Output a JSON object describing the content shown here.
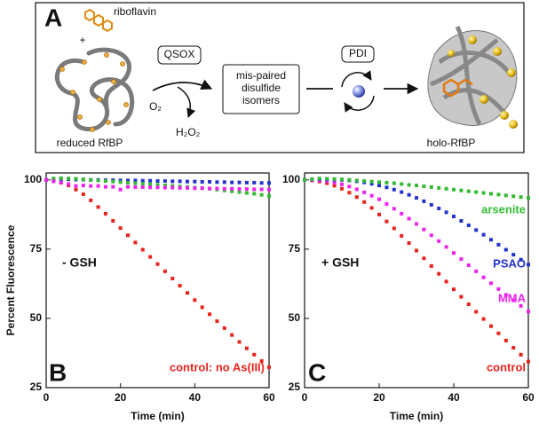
{
  "diagram": {
    "panel": "A",
    "riboflavin": "riboflavin",
    "plus": "+",
    "qsox": "QSOX",
    "o2": "O₂",
    "h2o2": "H₂O₂",
    "isomers": [
      "mis-paired",
      "disulfide",
      "isomers"
    ],
    "pdi": "PDI",
    "reduced": "reduced RfBP",
    "holo": "holo-RfBP"
  },
  "chart_data": [
    {
      "type": "scatter",
      "panel": "B",
      "annotation": "- GSH",
      "y_label": "Percent Fluorescence",
      "x_label": "Time (min)",
      "xlim": [
        0,
        60
      ],
      "xticks": [
        0,
        20,
        40,
        60
      ],
      "ylim": [
        25,
        102.5
      ],
      "yticks": [
        25,
        50,
        75,
        100
      ],
      "x": [
        0,
        2,
        4,
        6,
        8,
        10,
        12,
        14,
        16,
        18,
        20,
        22,
        24,
        26,
        28,
        30,
        32,
        34,
        36,
        38,
        40,
        42,
        44,
        46,
        48,
        50,
        52,
        54,
        56,
        58,
        60
      ],
      "series": [
        {
          "name": "control: no As(III)",
          "color": "#e8231c",
          "values": [
            100,
            99.7,
            99,
            98,
            96.5,
            94.8,
            92.6,
            90.2,
            87.8,
            85.2,
            82.6,
            80,
            77.4,
            74.8,
            72.2,
            69.6,
            67,
            64.4,
            61.8,
            59.2,
            56.6,
            54,
            51.5,
            49,
            46.5,
            44,
            41.5,
            39.2,
            36.9,
            34.6,
            32.4
          ]
        },
        {
          "color": "#2233cc",
          "values": [
            100,
            100.2,
            100.3,
            100.2,
            100.1,
            100.1,
            100,
            100,
            99.9,
            99.9,
            99.8,
            99.8,
            99.8,
            99.7,
            99.7,
            99.6,
            99.6,
            99.5,
            99.5,
            99.4,
            99.4,
            99.3,
            99.3,
            99.2,
            99.2,
            99.1,
            99.1,
            99.0,
            99.0,
            98.9,
            98.9
          ]
        },
        {
          "color": "#33bb33",
          "values": [
            100,
            100.5,
            100.6,
            100.5,
            100.4,
            100.2,
            100,
            99.8,
            99.6,
            99.4,
            99.2,
            99,
            98.8,
            98.6,
            98.4,
            98.2,
            98,
            97.8,
            97.6,
            97.4,
            97.2,
            97,
            96.8,
            96.5,
            96.2,
            95.9,
            95.6,
            95.3,
            95,
            94.6,
            94.2
          ]
        },
        {
          "color": "#ee22ee",
          "values": [
            100,
            99.5,
            99,
            98.5,
            97.8,
            98,
            97.8,
            97.8,
            97.5,
            97.5,
            96.5,
            97.5,
            97.4,
            97.4,
            97.3,
            97.3,
            97.2,
            97.2,
            97.1,
            97.1,
            97,
            97,
            96.9,
            96.9,
            96.8,
            96.8,
            96.7,
            96.7,
            96.6,
            96.6,
            96.5
          ]
        }
      ]
    },
    {
      "type": "scatter",
      "panel": "C",
      "annotation": "+ GSH",
      "x_label": "Time (min)",
      "xlim": [
        0,
        60
      ],
      "xticks": [
        0,
        20,
        40,
        60
      ],
      "ylim": [
        25,
        102.5
      ],
      "yticks": [
        25,
        50,
        75,
        100
      ],
      "x": [
        0,
        2,
        4,
        6,
        8,
        10,
        12,
        14,
        16,
        18,
        20,
        22,
        24,
        26,
        28,
        30,
        32,
        34,
        36,
        38,
        40,
        42,
        44,
        46,
        48,
        50,
        52,
        54,
        56,
        58,
        60
      ],
      "series": [
        {
          "name": "control",
          "color": "#e8231c",
          "values": [
            100,
            99.8,
            99.4,
            98.8,
            97.9,
            96.8,
            95.4,
            93.8,
            92,
            89.9,
            87.5,
            85,
            82.5,
            79.8,
            77.2,
            74.5,
            71.7,
            68.9,
            66.1,
            63.3,
            60.5,
            57.8,
            55.1,
            52.4,
            49.8,
            47.2,
            44.6,
            42,
            39.4,
            36.9,
            34.4
          ]
        },
        {
          "name": "MMA",
          "color": "#ee22ee",
          "values": [
            100,
            100,
            99.8,
            99.5,
            99,
            98.4,
            97.6,
            96.6,
            95.5,
            94.3,
            93,
            91.3,
            89.6,
            87.8,
            86,
            84.1,
            82.1,
            80,
            77.9,
            75.8,
            73.6,
            71.4,
            69.2,
            67,
            64.8,
            62.7,
            60.6,
            58.5,
            56.5,
            54.5,
            52.5
          ]
        },
        {
          "name": "PSAO",
          "color": "#2233cc",
          "values": [
            100,
            100.2,
            100.3,
            100.2,
            100.1,
            100,
            99.8,
            99.5,
            99.1,
            98.6,
            98,
            97.3,
            96.5,
            95.6,
            94.6,
            93.5,
            92.3,
            91,
            89.7,
            88.3,
            86.8,
            85.2,
            83.6,
            81.9,
            80.2,
            78.4,
            76.6,
            74.8,
            73,
            71.2,
            69.4
          ]
        },
        {
          "name": "arsenite",
          "color": "#33bb33",
          "values": [
            100,
            100.3,
            100.5,
            100.4,
            100.3,
            100.2,
            100,
            99.8,
            99.6,
            99.4,
            99.2,
            99,
            98.8,
            98.5,
            98.2,
            98,
            97.7,
            97.4,
            97.1,
            96.8,
            96.5,
            96.2,
            95.9,
            95.6,
            95.3,
            95,
            94.7,
            94.4,
            94.1,
            93.8,
            93.5
          ]
        }
      ]
    }
  ]
}
